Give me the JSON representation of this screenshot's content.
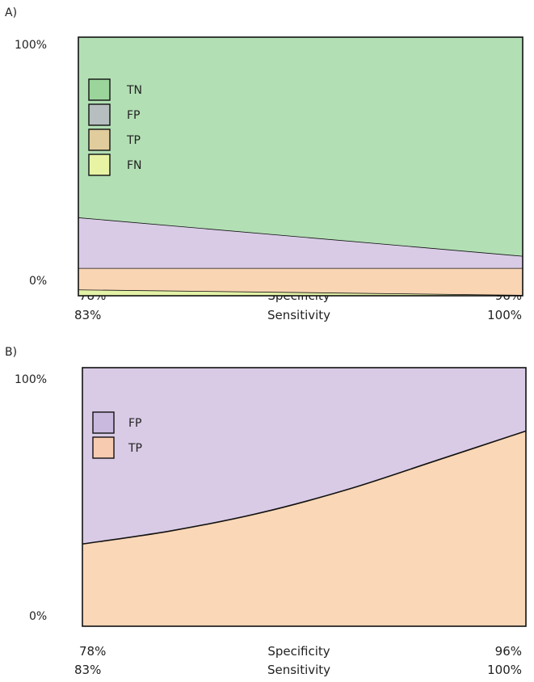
{
  "chart_data": [
    {
      "panel": "A)",
      "type": "area",
      "y_tick_top": "100%",
      "y_tick_bottom": "0%",
      "ylim": [
        0,
        100
      ],
      "x_start": {
        "specificity": "78%",
        "sensitivity": "83%"
      },
      "x_end": {
        "specificity": "96%",
        "sensitivity": "100%"
      },
      "xlabel": "Specificity",
      "xlabel2": "Sensitivity",
      "legend_placement": "top-left",
      "series": [
        {
          "name": "FN",
          "color": "#e3f2a6",
          "start": 2.4,
          "end": 0.3
        },
        {
          "name": "TP",
          "color": "#f9d5b3",
          "start": 10.7,
          "end": 10.7
        },
        {
          "name": "FP",
          "color": "#d9cbe6",
          "start": 30.3,
          "end": 15.4
        },
        {
          "name": "TN",
          "color": "#b2dfb4",
          "start": 100,
          "end": 100
        }
      ],
      "legend": [
        {
          "name": "TN",
          "color": "#9cd59c"
        },
        {
          "name": "FP",
          "color": "#b6bebf"
        },
        {
          "name": "TP",
          "color": "#e0cc9c"
        },
        {
          "name": "FN",
          "color": "#e8f4a4"
        }
      ]
    },
    {
      "panel": "B)",
      "type": "area",
      "y_tick_top": "100%",
      "y_tick_bottom": "0%",
      "ylim": [
        0,
        100
      ],
      "x_start": {
        "specificity": "78%",
        "sensitivity": "83%"
      },
      "x_end": {
        "specificity": "96%",
        "sensitivity": "100%"
      },
      "xlabel": "Specificity",
      "xlabel2": "Sensitivity",
      "legend_placement": "top-left",
      "series": [
        {
          "name": "TP",
          "color": "#fad7b6",
          "values": [
            31.8,
            36.9,
            43.8,
            53.0,
            64.2,
            75.5
          ]
        },
        {
          "name": "FP",
          "color": "#d9cbe6",
          "values": [
            100,
            100,
            100,
            100,
            100,
            100
          ]
        }
      ],
      "legend": [
        {
          "name": "FP",
          "color": "#c9b9df"
        },
        {
          "name": "TP",
          "color": "#f7cbb0"
        }
      ]
    }
  ]
}
